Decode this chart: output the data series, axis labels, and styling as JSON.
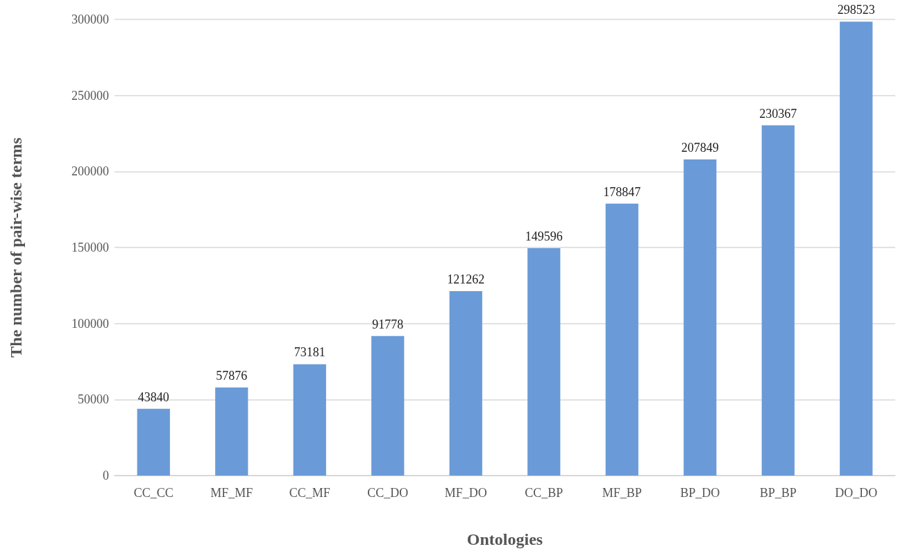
{
  "chart_data": {
    "type": "bar",
    "xlabel": "Ontologies",
    "ylabel": "The number of pair-wise terms",
    "categories": [
      "CC_CC",
      "MF_MF",
      "CC_MF",
      "CC_DO",
      "MF_DO",
      "CC_BP",
      "MF_BP",
      "BP_DO",
      "BP_BP",
      "DO_DO"
    ],
    "values": [
      43840,
      57876,
      73181,
      91778,
      121262,
      149596,
      178847,
      207849,
      230367,
      298523
    ],
    "color": "#6a9bd8",
    "ylim": [
      0,
      300000
    ],
    "yticks": [
      0,
      50000,
      100000,
      150000,
      200000,
      250000,
      300000
    ],
    "grid": "y",
    "data_labels": true
  }
}
